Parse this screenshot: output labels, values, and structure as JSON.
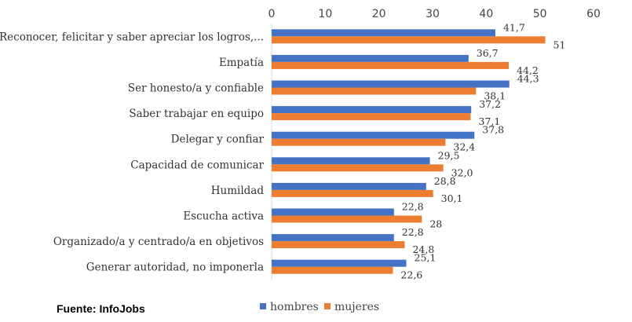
{
  "chart_data": {
    "type": "bar",
    "orientation": "horizontal",
    "categories": [
      "Reconocer, felicitar y saber apreciar los logros,...",
      "Empatía",
      "Ser honesto/a y confiable",
      "Saber trabajar en equipo",
      "Delegar y confiar",
      "Capacidad de comunicar",
      "Humildad",
      "Escucha activa",
      "Organizado/a y centrado/a en objetivos",
      "Generar autoridad, no imponerla"
    ],
    "series": [
      {
        "name": "hombres",
        "color": "#4472C4",
        "values": [
          41.7,
          36.7,
          44.3,
          37.2,
          37.8,
          29.5,
          28.8,
          22.8,
          22.8,
          25.1
        ],
        "labels": [
          "41,7",
          "36,7",
          "44,3",
          "37,2",
          "37,8",
          "29,5",
          "28,8",
          "22,8",
          "22,8",
          "25,1"
        ]
      },
      {
        "name": "mujeres",
        "color": "#ED7D31",
        "values": [
          51,
          44.2,
          38.1,
          37.1,
          32.4,
          32.0,
          30.1,
          28,
          24.8,
          22.6
        ],
        "labels": [
          "51",
          "44,2",
          "38,1",
          "37,1",
          "32,4",
          "32,0",
          "30,1",
          "28",
          "24,8",
          "22,6"
        ]
      }
    ],
    "xlim": [
      0,
      60
    ],
    "xticks": [
      0,
      10,
      20,
      30,
      40,
      50,
      60
    ],
    "xaxis_position": "top",
    "grid": false,
    "legend_position": "bottom-center",
    "source": "Fuente: InfoJobs"
  }
}
